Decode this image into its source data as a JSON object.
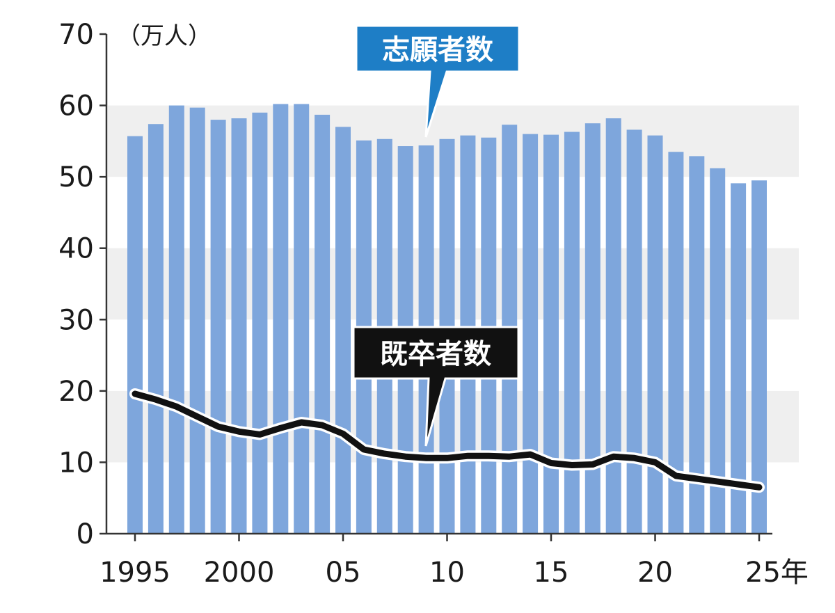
{
  "chart_data": {
    "type": "bar",
    "unit": "（万人）",
    "ylim": [
      0,
      70
    ],
    "yticks": [
      0,
      10,
      20,
      30,
      40,
      50,
      60,
      70
    ],
    "x": [
      1995,
      1996,
      1997,
      1998,
      1999,
      2000,
      2001,
      2002,
      2003,
      2004,
      2005,
      2006,
      2007,
      2008,
      2009,
      2010,
      2011,
      2012,
      2013,
      2014,
      2015,
      2016,
      2017,
      2018,
      2019,
      2020,
      2021,
      2022,
      2023,
      2024,
      2025
    ],
    "xtick_values": [
      1995,
      2000,
      2005,
      2010,
      2015,
      2020,
      2025
    ],
    "xtick_labels": [
      "1995",
      "2000",
      "05",
      "10",
      "15",
      "20",
      "25年"
    ],
    "series": [
      {
        "name": "志願者数",
        "kind": "bar",
        "color": "#7ea6dc",
        "values": [
          55.7,
          57.4,
          60.0,
          59.7,
          58.0,
          58.2,
          59.0,
          60.2,
          60.2,
          58.7,
          57.0,
          55.1,
          55.3,
          54.3,
          54.4,
          55.3,
          55.8,
          55.5,
          57.3,
          56.0,
          55.9,
          56.3,
          57.5,
          58.2,
          56.6,
          55.8,
          53.5,
          52.9,
          51.2,
          49.1,
          49.5
        ]
      },
      {
        "name": "既卒者数",
        "kind": "line",
        "color": "#111111",
        "values": [
          19.6,
          18.8,
          17.8,
          16.4,
          15.0,
          14.3,
          13.9,
          14.8,
          15.6,
          15.2,
          14.0,
          11.8,
          11.2,
          10.8,
          10.6,
          10.6,
          10.9,
          10.9,
          10.8,
          11.1,
          9.9,
          9.6,
          9.7,
          10.8,
          10.6,
          10.0,
          8.1,
          7.7,
          7.3,
          6.9,
          6.5
        ]
      }
    ],
    "band_color": "#efefef",
    "grid": false,
    "callouts": {
      "applicants": "志願者数",
      "graduates": "既卒者数"
    }
  }
}
